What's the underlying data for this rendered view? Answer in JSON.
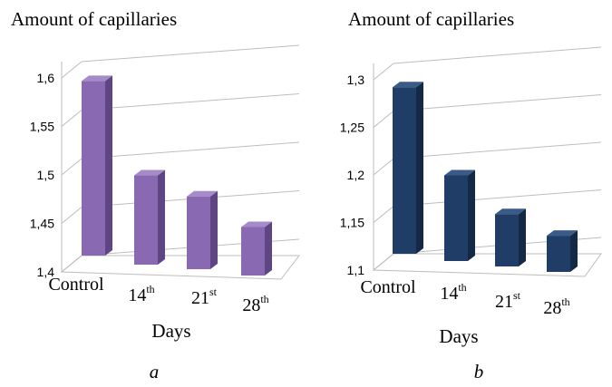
{
  "chart_data": [
    {
      "type": "bar",
      "title": "Amount of capillaries",
      "xlabel": "Days",
      "ylabel": "",
      "panel_label": "a",
      "categories": [
        {
          "main": "Control",
          "sup": ""
        },
        {
          "main": "14",
          "sup": "th"
        },
        {
          "main": "21",
          "sup": "st"
        },
        {
          "main": "28",
          "sup": "th"
        }
      ],
      "values": [
        1.58,
        1.492,
        1.475,
        1.45
      ],
      "ylim": [
        1.4,
        1.6
      ],
      "yticks": [
        "1,4",
        "1,45",
        "1,5",
        "1,55",
        "1,6"
      ],
      "bar_color": "#8a69b3",
      "bar_side_color": "#5e4684",
      "bar_top_color": "#a68bc9",
      "grid": true,
      "style": "3d"
    },
    {
      "type": "bar",
      "title": "Amount of capillaries",
      "xlabel": "Days",
      "ylabel": "",
      "panel_label": "b",
      "categories": [
        {
          "main": "Control",
          "sup": ""
        },
        {
          "main": "14",
          "sup": "th"
        },
        {
          "main": "21",
          "sup": "st"
        },
        {
          "main": "28",
          "sup": "th"
        }
      ],
      "values": [
        1.275,
        1.19,
        1.155,
        1.138
      ],
      "ylim": [
        1.1,
        1.3
      ],
      "yticks": [
        "1,1",
        "1,15",
        "1,2",
        "1,25",
        "1,3"
      ],
      "bar_color": "#1f3d66",
      "bar_side_color": "#142945",
      "bar_top_color": "#3a5a88",
      "grid": true,
      "style": "3d"
    }
  ]
}
